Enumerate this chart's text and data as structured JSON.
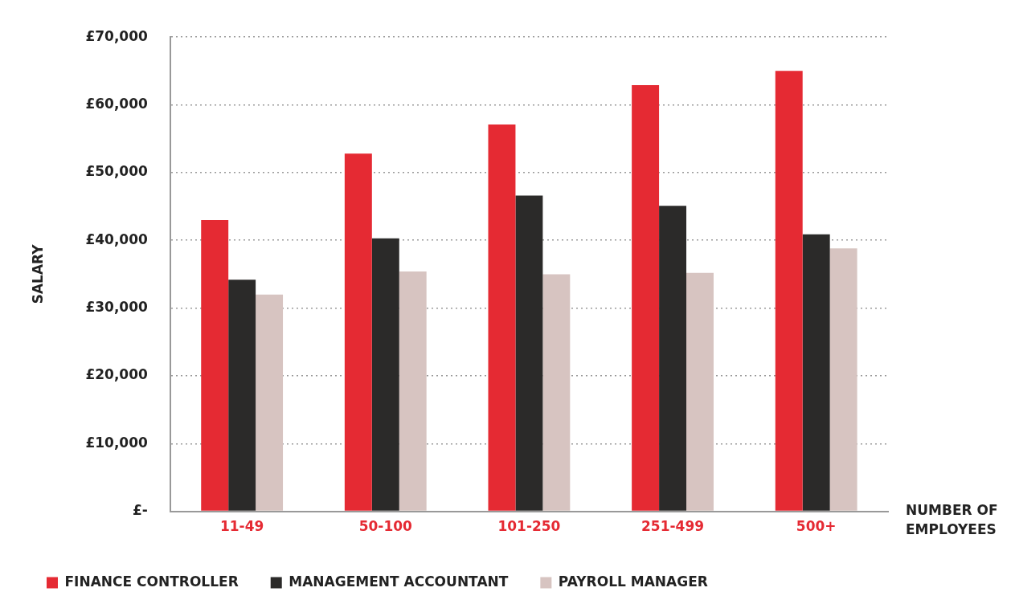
{
  "chart_data": {
    "type": "bar",
    "xlabel": "NUMBER OF\nEMPLOYEES",
    "ylabel": "SALARY",
    "categories": [
      "11-49",
      "50-100",
      "101-250",
      "251-499",
      "500+"
    ],
    "series": [
      {
        "name": "FINANCE CONTROLLER",
        "color": "#e52a33",
        "values": [
          43000,
          52800,
          57100,
          62900,
          65000
        ]
      },
      {
        "name": "MANAGEMENT ACCOUNTANT",
        "color": "#2b2a29",
        "values": [
          34200,
          40300,
          46600,
          45100,
          40900
        ]
      },
      {
        "name": "PAYROLL MANAGER",
        "color": "#d7c4c1",
        "values": [
          32000,
          35400,
          35000,
          35200,
          38800
        ]
      }
    ],
    "ylim": [
      0,
      70000
    ],
    "yticks": [
      {
        "value": 0,
        "label": "£-"
      },
      {
        "value": 10000,
        "label": "£10,000"
      },
      {
        "value": 20000,
        "label": "£20,000"
      },
      {
        "value": 30000,
        "label": "£30,000"
      },
      {
        "value": 40000,
        "label": "£40,000"
      },
      {
        "value": 50000,
        "label": "£50,000"
      },
      {
        "value": 60000,
        "label": "£60,000"
      },
      {
        "value": 70000,
        "label": "£70,000"
      }
    ],
    "grid": "y",
    "legend": "bottom"
  }
}
